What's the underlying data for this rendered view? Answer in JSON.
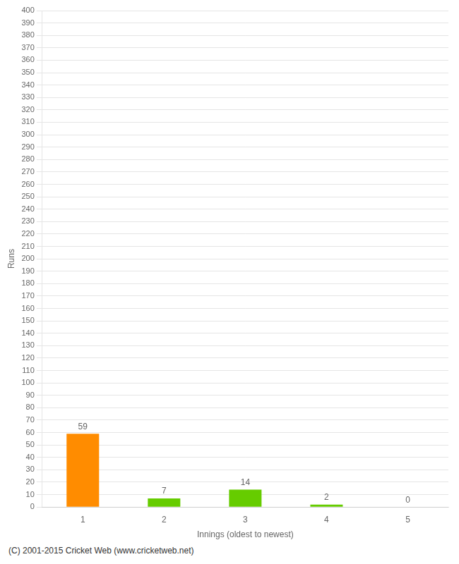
{
  "chart_data": {
    "type": "bar",
    "categories": [
      1,
      2,
      3,
      4,
      5
    ],
    "values": [
      59,
      7,
      14,
      2,
      0
    ],
    "colors": [
      "#ff8c00",
      "#66cc00",
      "#66cc00",
      "#66cc00",
      "#66cc00"
    ],
    "xlabel": "Innings (oldest to newest)",
    "ylabel": "Runs",
    "ylim": [
      0,
      400
    ],
    "yticks": [
      0,
      10,
      20,
      30,
      40,
      50,
      60,
      70,
      80,
      90,
      100,
      110,
      120,
      130,
      140,
      150,
      160,
      170,
      180,
      190,
      200,
      210,
      220,
      230,
      240,
      250,
      260,
      270,
      280,
      290,
      300,
      310,
      320,
      330,
      340,
      350,
      360,
      370,
      380,
      390,
      400
    ],
    "grid": "y",
    "data_labels": true,
    "annotations": [
      "(C) 2001-2015 Cricket Web (www.cricketweb.net)"
    ]
  }
}
